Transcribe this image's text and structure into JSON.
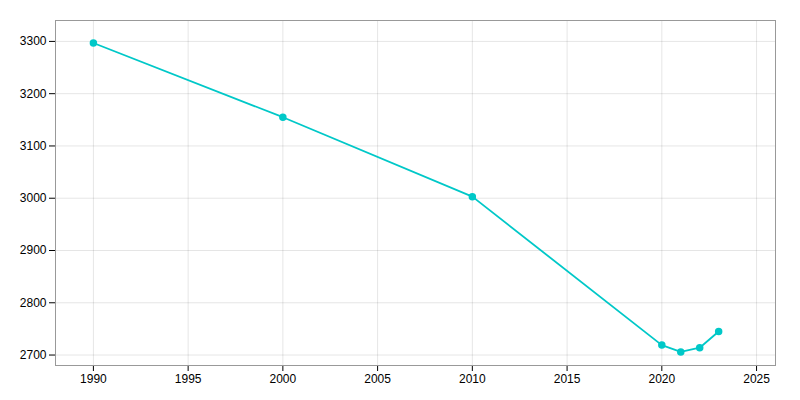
{
  "chart_data": {
    "type": "line",
    "x": [
      1990,
      2000,
      2010,
      2020,
      2021,
      2022,
      2023
    ],
    "values": [
      3297,
      3155,
      3003,
      2719,
      2706,
      2714,
      2745
    ],
    "color": "#00C8C8",
    "marker": "circle",
    "xlim": [
      1988,
      2026
    ],
    "ylim": [
      2680,
      3340
    ],
    "xticks": [
      1990,
      1995,
      2000,
      2005,
      2010,
      2015,
      2020,
      2025
    ],
    "yticks": [
      2700,
      2800,
      2900,
      3000,
      3100,
      3200,
      3300
    ],
    "grid": true
  }
}
